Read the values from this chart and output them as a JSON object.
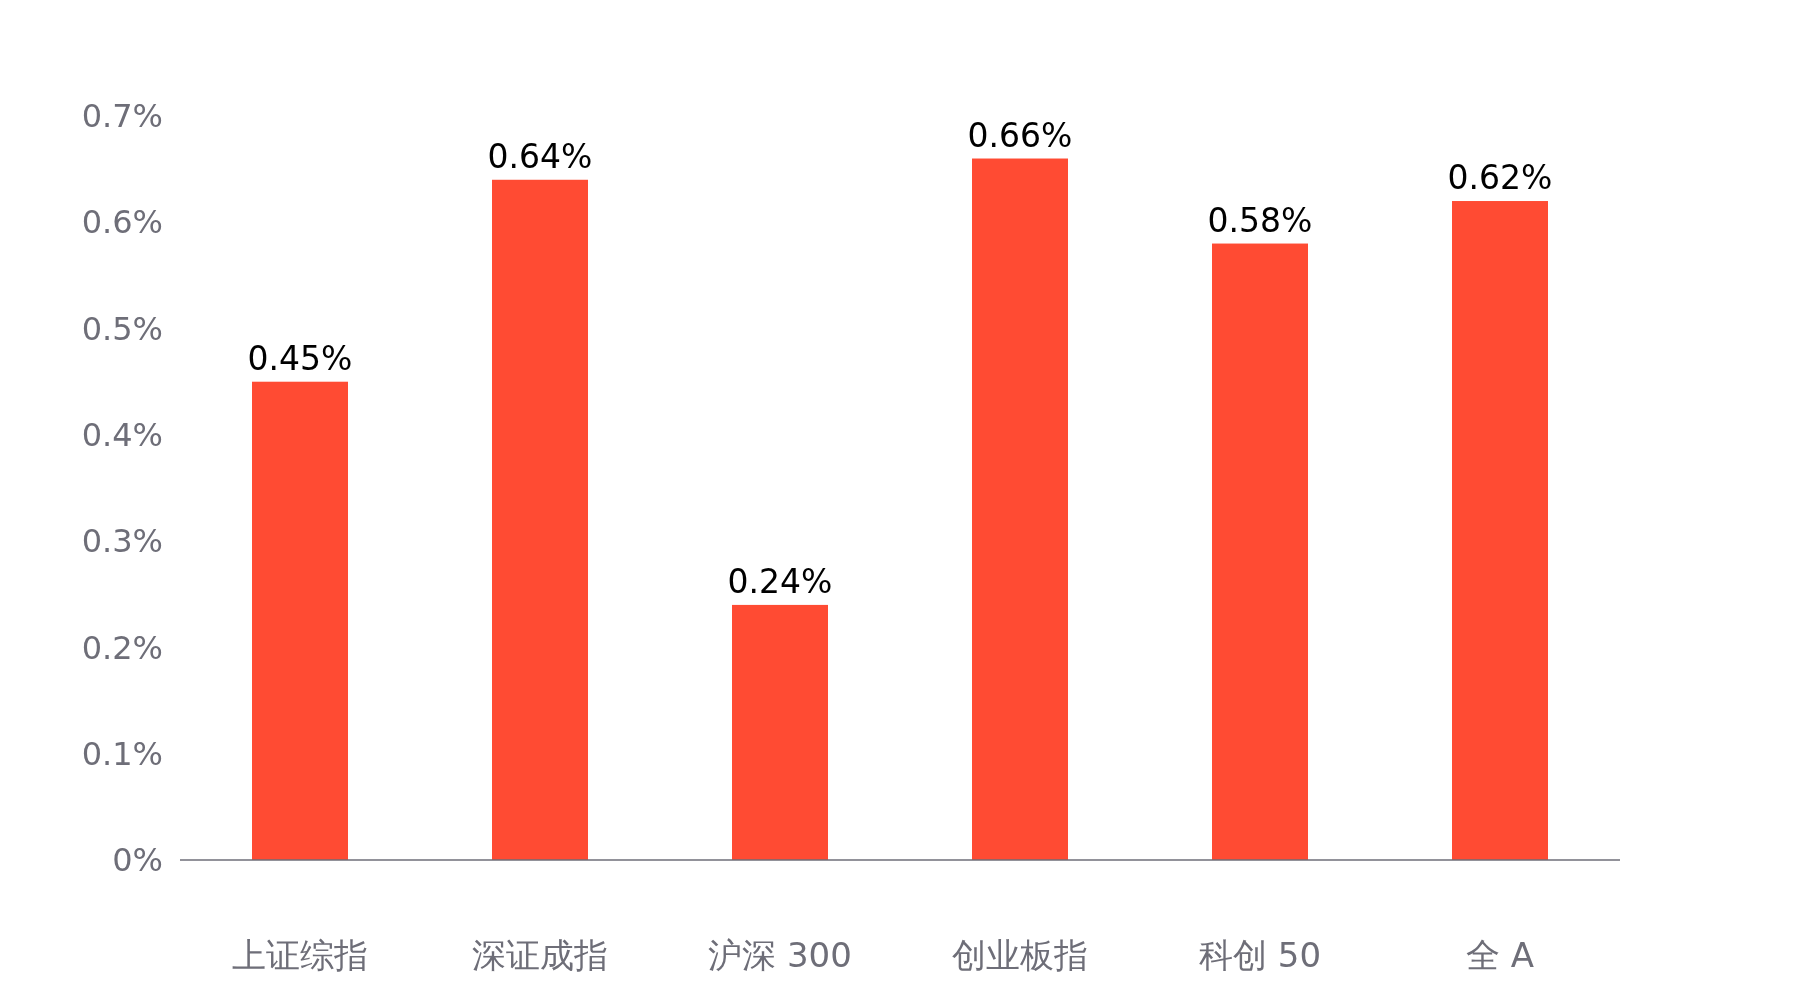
{
  "chart_data": {
    "type": "bar",
    "categories": [
      "上证综指",
      "深证成指",
      "沪深 300",
      "创业板指",
      "科创 50",
      "全 A"
    ],
    "values": [
      0.45,
      0.64,
      0.24,
      0.66,
      0.58,
      0.62
    ],
    "value_labels": [
      "0.45%",
      "0.64%",
      "0.24%",
      "0.66%",
      "0.58%",
      "0.62%"
    ],
    "color": "#ff4b33",
    "ylim": [
      0,
      0.7
    ],
    "yticks": [
      {
        "value": 0,
        "label": "0%"
      },
      {
        "value": 0.1,
        "label": "0.1%"
      },
      {
        "value": 0.2,
        "label": "0.2%"
      },
      {
        "value": 0.3,
        "label": "0.3%"
      },
      {
        "value": 0.4,
        "label": "0.4%"
      },
      {
        "value": 0.5,
        "label": "0.5%"
      },
      {
        "value": 0.6,
        "label": "0.6%"
      },
      {
        "value": 0.7,
        "label": "0.7%"
      }
    ],
    "grid": false
  }
}
